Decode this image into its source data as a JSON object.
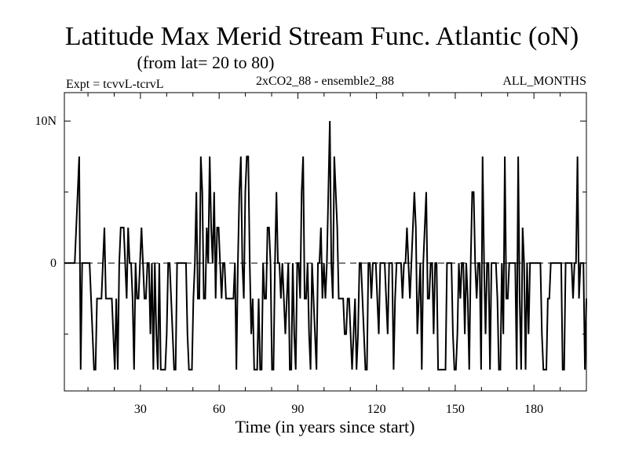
{
  "chart_data": {
    "type": "line",
    "title": "Latitude Max Merid Stream Func. Atlantic (oN)",
    "subtitle": "(from lat= 20 to 80)",
    "header_left": "Expt = tcvvL-tcrvL",
    "header_center": "2xCO2_88 - ensemble2_88",
    "header_right": "ALL_MONTHS",
    "xlabel": "Time (in years since start)",
    "ylabel": "",
    "xlim": [
      1,
      200
    ],
    "ylim": [
      -9,
      12
    ],
    "x_ticks": [
      30,
      60,
      90,
      120,
      150,
      180
    ],
    "y_ticks": [
      {
        "value": 10,
        "label": "10N"
      },
      {
        "value": 0,
        "label": "0"
      }
    ],
    "zero_line": "dashed",
    "grid": false,
    "series": [
      {
        "values": [
          0,
          0,
          0,
          0,
          0,
          0,
          0,
          0,
          2.5,
          5,
          7.5,
          -7.5,
          0,
          0,
          0,
          0,
          0,
          0,
          -2.5,
          -5,
          -7.5,
          -7.5,
          -2.5,
          -2.5,
          -2.5,
          -2.5,
          0,
          2.5,
          -2.5,
          -2.5,
          -2.5,
          -2.5,
          -2.5,
          -5,
          -7.5,
          -2.5,
          -7.5,
          0,
          2.5,
          2.5,
          2.5,
          0,
          -2.5,
          2.5,
          0,
          0,
          -2.5,
          -7.5,
          0,
          -2.5,
          -2.5,
          0,
          2.5,
          0,
          -2.5,
          -2.5,
          0,
          0,
          -5,
          0,
          -7.5,
          0,
          -5,
          -7.5,
          0,
          -7.5,
          -7.5,
          -7.5,
          -7.5,
          -5,
          0,
          0,
          -2.5,
          -5,
          -7.5,
          -7.5,
          0,
          0,
          0,
          0,
          0,
          0,
          0,
          -5,
          -7.5,
          -7.5,
          -7.5,
          -2.5,
          0,
          5,
          -2.5,
          -2.5,
          7.5,
          5,
          -2.5,
          -2.5,
          2.5,
          0,
          7.5,
          2.5,
          0,
          5,
          -2.5,
          2.5,
          2.5,
          0,
          -2.5,
          0,
          0,
          -2.5,
          -2.5,
          -2.5,
          -2.5,
          -2.5,
          -2.5,
          0,
          -7.5,
          0,
          5,
          7.5,
          0,
          -2.5,
          5,
          7.5,
          7.5,
          0,
          -5,
          -2.5,
          -7.5,
          -7.5,
          -7.5,
          -2.5,
          -7.5,
          -7.5,
          0,
          -2.5,
          -2.5,
          2.5,
          2.5,
          0,
          -7.5,
          -7.5,
          0,
          5,
          0,
          0,
          -2.5,
          0,
          -2.5,
          -5,
          -2.5,
          0,
          -7.5,
          -7.5,
          0,
          -5,
          -7.5,
          0,
          0,
          -2.5,
          5,
          7.5,
          -2.5,
          -2.5,
          0,
          -5,
          -7.5,
          0,
          -2.5,
          -5,
          -7.5,
          0,
          0,
          2.5,
          -2.5,
          0,
          -2.5,
          0,
          5,
          10,
          0,
          -2.5,
          7.5,
          5,
          2.5,
          -2.5,
          -2.5,
          -2.5,
          -2.5,
          -5,
          -5,
          -2.5,
          -2.5,
          -5,
          -7.5,
          -5,
          -2.5,
          -7.5,
          -5,
          0,
          0,
          -2.5,
          -5,
          -7.5,
          -7.5,
          0,
          0,
          -2.5,
          0,
          0,
          0,
          -2.5,
          -5,
          0,
          0,
          0,
          0,
          -2.5,
          -5,
          0,
          0,
          0,
          -7.5,
          -2.5,
          0,
          0,
          0,
          0,
          -2.5,
          0,
          0,
          2.5,
          0,
          -2.5,
          0,
          2.5,
          5,
          2.5,
          -5,
          -2.5,
          0,
          -7.5,
          0,
          2.5,
          5,
          -2.5,
          -2.5,
          0,
          0,
          -5,
          0,
          0,
          -7.5,
          -7.5,
          -7.5,
          -7.5,
          -7.5,
          -7.5,
          0,
          0,
          0,
          0,
          -5,
          -7.5,
          -7.5,
          -5,
          0,
          -2.5,
          0,
          0,
          -5,
          0,
          -2.5,
          -7.5,
          0,
          5,
          5,
          0,
          -2.5,
          0,
          0,
          -7.5,
          7.5,
          0,
          -5,
          0,
          0,
          -7.5,
          0,
          0,
          0,
          0,
          -2.5,
          -7.5,
          -7.5,
          0,
          -5,
          7.5,
          -2.5,
          -2.5,
          0,
          0,
          0,
          0,
          0,
          -7.5,
          7.5,
          -2.5,
          -7.5,
          2.5,
          0,
          -7.5,
          0,
          -5,
          0,
          0,
          0,
          0,
          0,
          0,
          0,
          0,
          -5,
          -7.5,
          -7.5,
          -7.5,
          -2.5,
          -2.5,
          0,
          0,
          0,
          0,
          0,
          0,
          0,
          0,
          -7.5,
          -7.5,
          0,
          0,
          0,
          0,
          0,
          -2.5,
          0,
          0,
          7.5,
          -2.5,
          0,
          0,
          0,
          -7.5,
          -2.5
        ]
      }
    ]
  }
}
